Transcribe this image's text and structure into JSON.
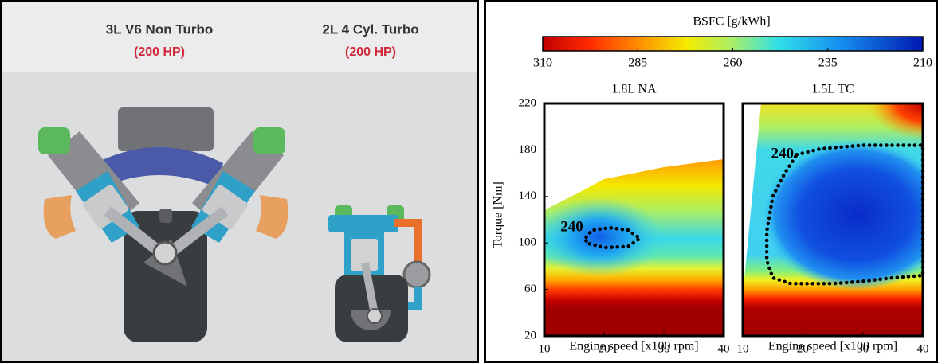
{
  "left_panel": {
    "engines": [
      {
        "name": "3L V6 Non Turbo",
        "power": "(200 HP)"
      },
      {
        "name": "2L 4 Cyl. Turbo",
        "power": "(200 HP)"
      }
    ]
  },
  "colorbar": {
    "title": "BSFC [g/kWh]",
    "lim": [
      310,
      210
    ],
    "ticks": [
      310,
      285,
      260,
      235,
      210
    ]
  },
  "chart_data": [
    {
      "type": "contour",
      "title": "1.8L NA",
      "xlabel": "Engine speed [x100 rpm]",
      "ylabel": "Torque [Nm]",
      "xlim": [
        10,
        40
      ],
      "ylim": [
        20,
        220
      ],
      "xticks": [
        10,
        20,
        30,
        40
      ],
      "yticks": [
        20,
        60,
        100,
        140,
        180,
        220
      ],
      "series": [
        {
          "name": "240",
          "x": [
            17,
            18,
            21,
            24,
            26,
            24,
            20,
            17,
            17
          ],
          "y": [
            105,
            111,
            113,
            111,
            104,
            97,
            96,
            100,
            105
          ]
        }
      ]
    },
    {
      "type": "contour",
      "title": "1.5L TC",
      "xlabel": "Engine speed [x100 rpm]",
      "xlim": [
        10,
        40
      ],
      "ylim": [
        20,
        220
      ],
      "xticks": [
        10,
        20,
        30,
        40
      ],
      "series": [
        {
          "name": "240",
          "x": [
            19,
            23,
            30,
            40,
            40,
            35,
            30,
            25,
            18,
            15,
            14,
            14,
            15,
            17,
            19
          ],
          "y": [
            176,
            181,
            184,
            184,
            72,
            70,
            67,
            65,
            65,
            70,
            85,
            110,
            140,
            160,
            176
          ]
        }
      ]
    }
  ]
}
